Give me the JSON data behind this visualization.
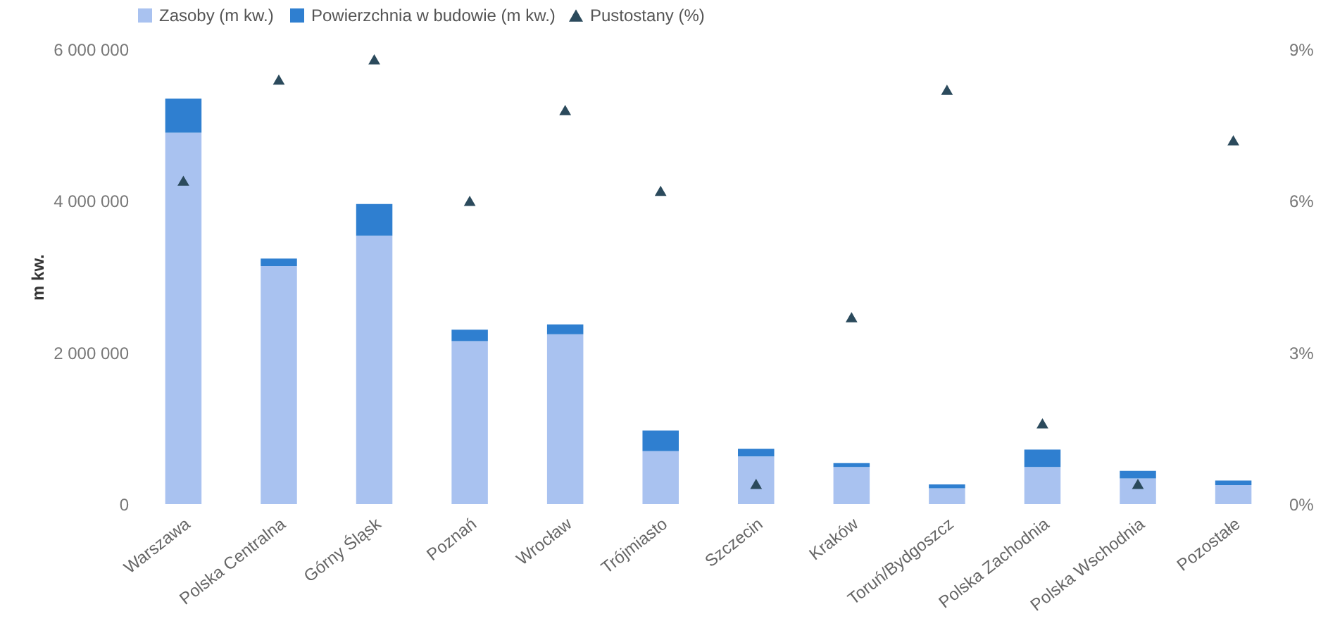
{
  "chart_data": {
    "type": "bar",
    "stacked": true,
    "ylabel": "m kw.",
    "legend": "top",
    "marker": "triangle",
    "categories": [
      "Warszawa",
      "Polska Centralna",
      "Górny Śląsk",
      "Poznań",
      "Wrocław",
      "Trójmiasto",
      "Szczecin",
      "Kraków",
      "Toruń/Bydgoszcz",
      "Polska Zachodnia",
      "Polska Wschodnia",
      "Pozostałe"
    ],
    "series": [
      {
        "name": "Zasoby (m kw.)",
        "color": "#a9c2f0",
        "values": [
          4900000,
          3140000,
          3540000,
          2150000,
          2240000,
          700000,
          630000,
          490000,
          210000,
          490000,
          340000,
          250000
        ]
      },
      {
        "name": "Powierzchnia w budowie (m kw.)",
        "color": "#2f7fd0",
        "values": [
          450000,
          100000,
          420000,
          150000,
          130000,
          270000,
          100000,
          50000,
          50000,
          230000,
          100000,
          60000
        ]
      },
      {
        "name": "Pustostany (%)",
        "type": "scatter",
        "axis": "y2",
        "color": "#2b4a5c",
        "values": [
          6.4,
          8.4,
          8.8,
          6.0,
          7.8,
          6.2,
          0.4,
          3.7,
          8.2,
          1.6,
          0.4,
          7.2
        ]
      }
    ],
    "ylim": [
      0,
      6000000
    ],
    "yticks": [
      0,
      {
        "value": 2000000,
        "label": "2 000 000"
      },
      {
        "value": 4000000,
        "label": "4 000 000"
      },
      {
        "value": 6000000,
        "label": "6 000 000"
      }
    ],
    "y2lim": [
      0,
      9
    ],
    "y2ticks": [
      {
        "value": 0,
        "label": "0%"
      },
      {
        "value": 3,
        "label": "3%"
      },
      {
        "value": 6,
        "label": "6%"
      },
      {
        "value": 9,
        "label": "9%"
      }
    ]
  }
}
